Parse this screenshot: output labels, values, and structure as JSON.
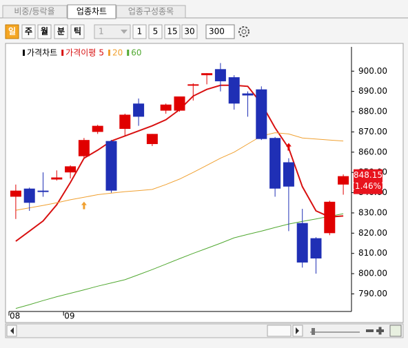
{
  "tabs": [
    "비중/등락율",
    "업종차트",
    "업종구성종목"
  ],
  "toolbar": {
    "periods": [
      "일",
      "주",
      "월",
      "분",
      "틱"
    ],
    "dropdown": "1",
    "intervals": [
      "1",
      "5",
      "15",
      "30"
    ],
    "count": "300"
  },
  "chart_data": {
    "type": "candlestick",
    "legend": {
      "price": "가격차트",
      "ma": "가격이평"
    },
    "categories": [
      "08",
      null,
      null,
      null,
      "09",
      null,
      null,
      null,
      null,
      null,
      null,
      null,
      null,
      null,
      null,
      null,
      null,
      null,
      null,
      null,
      null,
      null,
      null,
      null,
      null
    ],
    "open": [
      838,
      842,
      841,
      846.5,
      850,
      858,
      870,
      865.5,
      871.5,
      884,
      864,
      880.5,
      880.5,
      893,
      898,
      901,
      897,
      889,
      891,
      867,
      855,
      825,
      817.5,
      820,
      844
    ],
    "high": [
      844,
      842.5,
      850,
      851,
      853.5,
      867,
      873.5,
      866,
      879,
      886.5,
      869,
      884,
      887.5,
      894,
      899,
      904,
      898,
      890,
      892.5,
      867.5,
      857,
      832,
      818,
      836,
      849
    ],
    "low": [
      827,
      831,
      838,
      846,
      847,
      857,
      869,
      840,
      868,
      873,
      863,
      879,
      880,
      885.5,
      893.5,
      890,
      881,
      877.5,
      866,
      838,
      821,
      803,
      800,
      819,
      839
    ],
    "close": [
      841,
      835,
      840.5,
      847.5,
      853,
      866,
      873,
      841,
      878.5,
      877.5,
      869,
      883.5,
      887.5,
      893.5,
      899,
      895,
      884,
      888,
      866.5,
      842,
      843,
      805.5,
      807.5,
      835.5,
      848.15
    ],
    "up_color": "#e00000",
    "down_color": "#1f2fb5",
    "series": [
      {
        "name": "5",
        "color": "#d81010",
        "values": [
          816,
          821,
          826,
          834,
          845,
          857,
          861,
          865.5,
          868,
          870.5,
          873,
          876,
          881,
          887.7,
          891,
          893,
          893,
          892.5,
          884,
          872,
          862,
          843,
          831,
          828,
          828.5
        ]
      },
      {
        "name": "20",
        "color": "#f0a030",
        "values": [
          831.3,
          832.5,
          833.7,
          835,
          836.5,
          837.7,
          839,
          839.8,
          840.5,
          841,
          841.6,
          844,
          846.7,
          850,
          853.5,
          857,
          860,
          864,
          868,
          869.6,
          869,
          867,
          866.5,
          866,
          865.5
        ]
      },
      {
        "name": "60",
        "color": "#50a830",
        "values": [
          782.8,
          784.7,
          786.7,
          788.6,
          790.3,
          792,
          793.8,
          795.4,
          797,
          799.5,
          802,
          804.7,
          807.4,
          810,
          812.5,
          815,
          817.7,
          819.4,
          821,
          822.8,
          824.5,
          825.8,
          827,
          828.3,
          829.6
        ]
      }
    ],
    "signals": [
      {
        "index": 5,
        "value": 833.5,
        "color": "#f0a030"
      },
      {
        "index": 20,
        "value": 862.5,
        "color": "#e00000"
      }
    ],
    "last_price": {
      "value": 848.15,
      "label": "848.15"
    },
    "change": {
      "value": 1.46,
      "label": "(1.46%)"
    },
    "ylim": [
      782,
      912
    ],
    "yticks": [
      {
        "value": 790,
        "label": "790.00"
      },
      {
        "value": 800,
        "label": "800.00"
      },
      {
        "value": 810,
        "label": "810.00"
      },
      {
        "value": 820,
        "label": "820.00"
      },
      {
        "value": 830,
        "label": "830.00"
      },
      {
        "value": 840,
        "label": "840.00"
      },
      {
        "value": 850,
        "label": "850.00"
      },
      {
        "value": 860,
        "label": "860.00"
      },
      {
        "value": 870,
        "label": "870.00"
      },
      {
        "value": 880,
        "label": "880.00"
      },
      {
        "value": 890,
        "label": "890.00"
      },
      {
        "value": 900,
        "label": "900.00"
      }
    ]
  }
}
